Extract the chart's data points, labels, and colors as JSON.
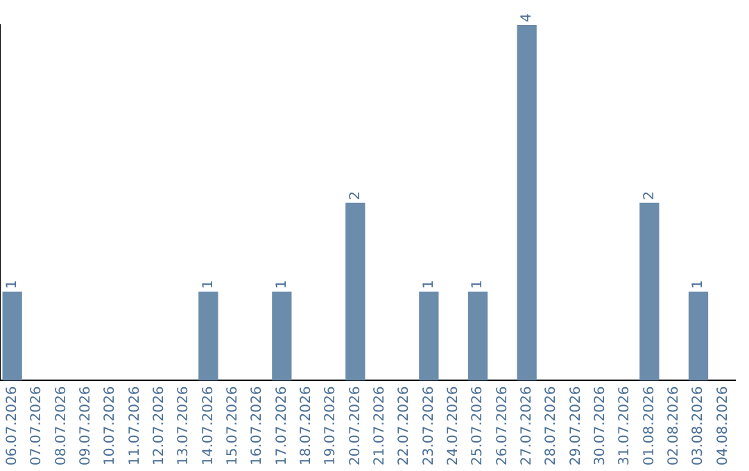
{
  "chart_data": {
    "type": "bar",
    "categories": [
      "06.07.2026",
      "07.07.2026",
      "08.07.2026",
      "09.07.2026",
      "10.07.2026",
      "11.07.2026",
      "12.07.2026",
      "13.07.2026",
      "14.07.2026",
      "15.07.2026",
      "16.07.2026",
      "17.07.2026",
      "18.07.2026",
      "19.07.2026",
      "20.07.2026",
      "21.07.2026",
      "22.07.2026",
      "23.07.2026",
      "24.07.2026",
      "25.07.2026",
      "26.07.2026",
      "27.07.2026",
      "28.07.2026",
      "29.07.2026",
      "30.07.2026",
      "31.07.2026",
      "01.08.2026",
      "02.08.2026",
      "03.08.2026",
      "04.08.2026"
    ],
    "values": [
      1,
      0,
      0,
      0,
      0,
      0,
      0,
      0,
      1,
      0,
      0,
      1,
      0,
      0,
      2,
      0,
      0,
      1,
      0,
      1,
      0,
      4,
      0,
      0,
      0,
      0,
      2,
      0,
      1,
      0
    ],
    "value_labels": [
      "1",
      null,
      null,
      null,
      null,
      null,
      null,
      null,
      "1",
      null,
      null,
      "1",
      null,
      null,
      "2",
      null,
      null,
      "1",
      null,
      "1",
      null,
      "4",
      null,
      null,
      null,
      null,
      "2",
      null,
      "1",
      null
    ],
    "color": "#6b8cab",
    "grid": false,
    "legend": false
  }
}
